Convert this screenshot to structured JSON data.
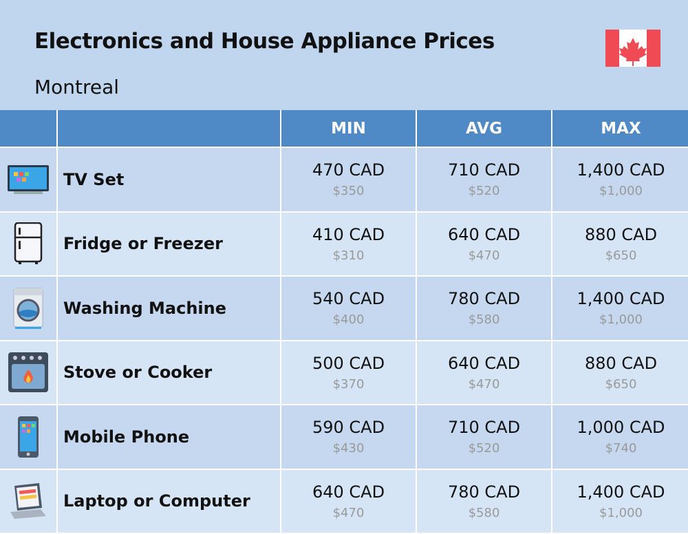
{
  "header": {
    "title": "Electronics and House Appliance Prices",
    "subtitle": "Montreal"
  },
  "table": {
    "columns": [
      "MIN",
      "AVG",
      "MAX"
    ],
    "rows": [
      {
        "label": "TV Set",
        "cells": [
          {
            "main": "470 CAD",
            "sub": "$350"
          },
          {
            "main": "710 CAD",
            "sub": "$520"
          },
          {
            "main": "1,400 CAD",
            "sub": "$1,000"
          }
        ]
      },
      {
        "label": "Fridge or Freezer",
        "cells": [
          {
            "main": "410 CAD",
            "sub": "$310"
          },
          {
            "main": "640 CAD",
            "sub": "$470"
          },
          {
            "main": "880 CAD",
            "sub": "$650"
          }
        ]
      },
      {
        "label": "Washing Machine",
        "cells": [
          {
            "main": "540 CAD",
            "sub": "$400"
          },
          {
            "main": "780 CAD",
            "sub": "$580"
          },
          {
            "main": "1,400 CAD",
            "sub": "$1,000"
          }
        ]
      },
      {
        "label": "Stove or Cooker",
        "cells": [
          {
            "main": "500 CAD",
            "sub": "$370"
          },
          {
            "main": "640 CAD",
            "sub": "$470"
          },
          {
            "main": "880 CAD",
            "sub": "$650"
          }
        ]
      },
      {
        "label": "Mobile Phone",
        "cells": [
          {
            "main": "590 CAD",
            "sub": "$430"
          },
          {
            "main": "710 CAD",
            "sub": "$520"
          },
          {
            "main": "1,000 CAD",
            "sub": "$740"
          }
        ]
      },
      {
        "label": "Laptop or Computer",
        "cells": [
          {
            "main": "640 CAD",
            "sub": "$470"
          },
          {
            "main": "780 CAD",
            "sub": "$580"
          },
          {
            "main": "1,400 CAD",
            "sub": "$1,000"
          }
        ]
      }
    ]
  }
}
